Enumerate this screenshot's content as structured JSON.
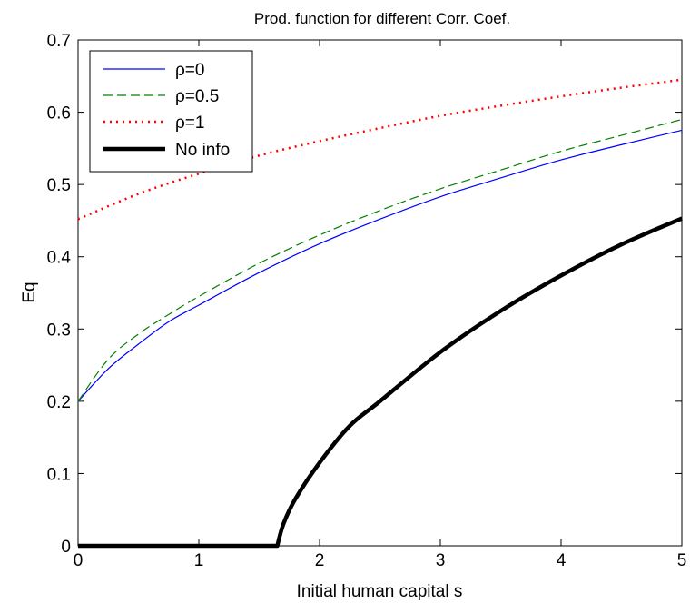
{
  "chart_data": {
    "type": "line",
    "title": "Prod. function for different Corr. Coef.",
    "xlabel": "Initial human capital s",
    "ylabel": "Eq",
    "xlim": [
      0,
      5
    ],
    "ylim": [
      0,
      0.7
    ],
    "xticks": [
      "0",
      "1",
      "2",
      "3",
      "4",
      "5"
    ],
    "yticks": [
      "0",
      "0.1",
      "0.2",
      "0.3",
      "0.4",
      "0.5",
      "0.6",
      "0.7"
    ],
    "grid": false,
    "legend_position": "top-left",
    "series": [
      {
        "name": "ρ=0",
        "color": "#0000ff",
        "style": "solid",
        "x": [
          0,
          0.25,
          0.5,
          0.75,
          1,
          1.5,
          2,
          2.5,
          3,
          3.5,
          4,
          4.5,
          5
        ],
        "y": [
          0.2,
          0.245,
          0.279,
          0.31,
          0.333,
          0.378,
          0.418,
          0.452,
          0.483,
          0.509,
          0.534,
          0.555,
          0.575
        ]
      },
      {
        "name": "ρ=0.5",
        "color": "#008000",
        "style": "dashed",
        "x": [
          0,
          0.25,
          0.5,
          0.75,
          1,
          1.5,
          2,
          2.5,
          3,
          3.5,
          4,
          4.5,
          5
        ],
        "y": [
          0.2,
          0.258,
          0.293,
          0.32,
          0.345,
          0.391,
          0.43,
          0.464,
          0.494,
          0.52,
          0.546,
          0.568,
          0.59
        ]
      },
      {
        "name": "ρ=1",
        "color": "#ff0000",
        "style": "dotted",
        "x": [
          0,
          0.5,
          1,
          1.5,
          2,
          2.5,
          3,
          3.5,
          4,
          4.5,
          5
        ],
        "y": [
          0.452,
          0.487,
          0.515,
          0.54,
          0.56,
          0.578,
          0.595,
          0.609,
          0.622,
          0.634,
          0.645
        ]
      },
      {
        "name": "No info",
        "color": "#000000",
        "style": "solid-thick",
        "x": [
          0,
          1.65,
          1.7,
          1.8,
          2,
          2.25,
          2.5,
          3,
          3.5,
          4,
          4.5,
          5
        ],
        "y": [
          0,
          0,
          0.03,
          0.065,
          0.115,
          0.166,
          0.2,
          0.268,
          0.325,
          0.374,
          0.417,
          0.453
        ]
      }
    ]
  }
}
